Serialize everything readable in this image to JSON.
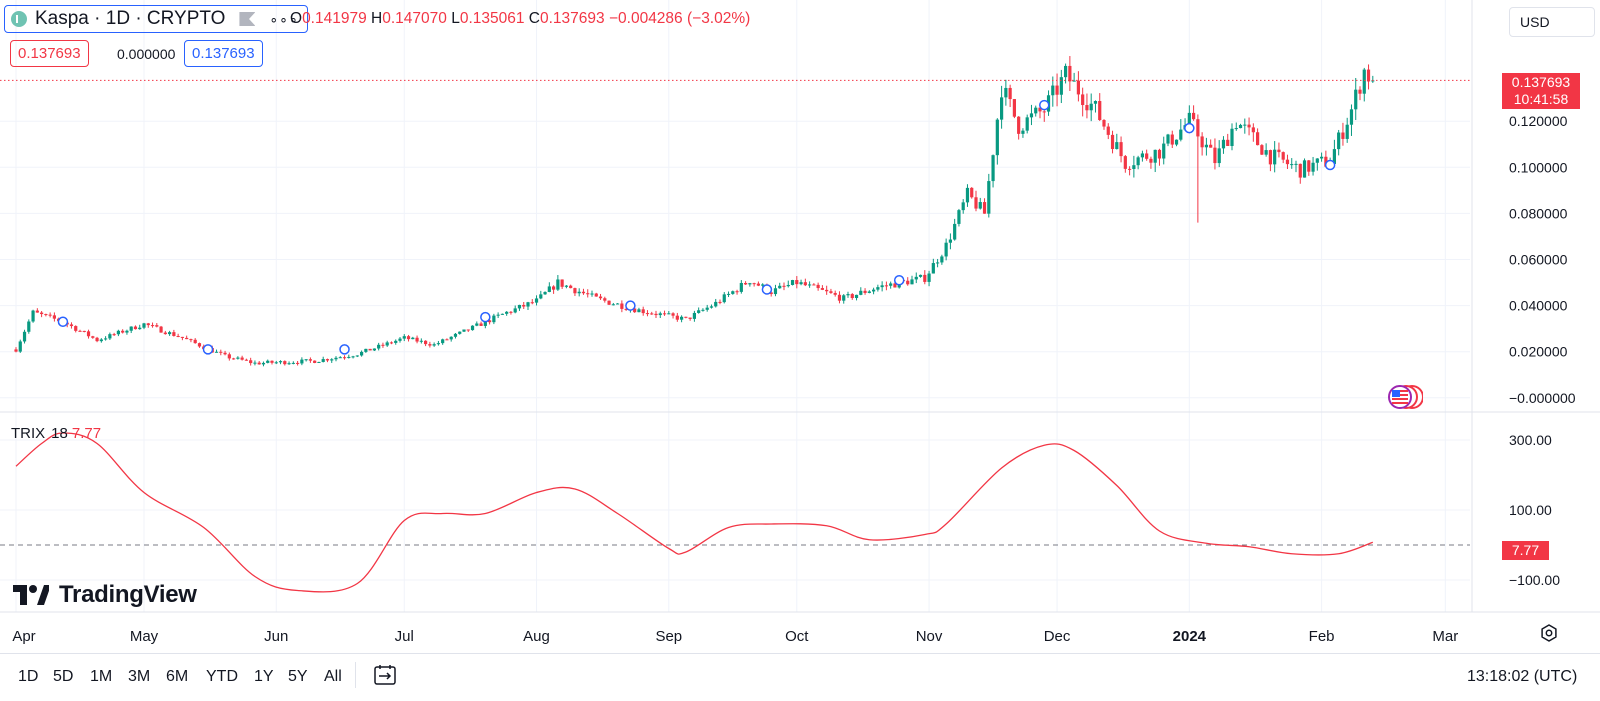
{
  "header": {
    "symbol_title": "Kaspa · 1D · CRYPTO",
    "more_icon": "dots-icon",
    "ohlc": {
      "o_label": "O",
      "o": "0.141979",
      "h_label": "H",
      "h": "0.147070",
      "l_label": "L",
      "l": "0.135061",
      "c_label": "C",
      "c": "0.137693",
      "change": "−0.004286 (−3.02%)"
    },
    "bid": "0.137693",
    "spread": "0.000000",
    "ask": "0.137693",
    "currency": "USD"
  },
  "price_tag": {
    "price": "0.137693",
    "countdown": "10:41:58"
  },
  "trix": {
    "name": "TRIX",
    "length": "18",
    "value": "7.77",
    "tag": "7.77"
  },
  "brand": {
    "name": "TradingView"
  },
  "timeframes": [
    "1D",
    "5D",
    "1M",
    "3M",
    "6M",
    "YTD",
    "1Y",
    "5Y",
    "All"
  ],
  "footer": {
    "time": "13:18:02 (UTC)"
  },
  "colors": {
    "up": "#089981",
    "down": "#f23645",
    "trix": "#f23645",
    "accent": "#2962ff",
    "grid": "#f0f3fa"
  },
  "chart_data": [
    {
      "type": "candlestick",
      "title": "Kaspa · 1D · CRYPTO",
      "y_ticks": [
        "0.120000",
        "0.100000",
        "0.080000",
        "0.060000",
        "0.040000",
        "0.020000",
        "−0.000000"
      ],
      "y_tick_values": [
        0.12,
        0.1,
        0.08,
        0.06,
        0.04,
        0.02,
        0.0
      ],
      "x_ticks": [
        "Apr",
        "May",
        "Jun",
        "Jul",
        "Aug",
        "Sep",
        "Oct",
        "Nov",
        "Dec",
        "2024",
        "Feb",
        "Mar"
      ],
      "x_tick_dates": [
        "2023-04-01",
        "2023-05-01",
        "2023-06-01",
        "2023-07-01",
        "2023-08-01",
        "2023-09-01",
        "2023-10-01",
        "2023-11-01",
        "2023-12-01",
        "2024-01-01",
        "2024-02-01",
        "2024-03-01"
      ],
      "date_range": [
        "2023-04-01",
        "2024-02-13"
      ],
      "close_anchors": [
        {
          "date": "2023-04-01",
          "close": 0.021
        },
        {
          "date": "2023-04-05",
          "close": 0.037
        },
        {
          "date": "2023-04-12",
          "close": 0.033
        },
        {
          "date": "2023-04-20",
          "close": 0.025
        },
        {
          "date": "2023-05-01",
          "close": 0.032
        },
        {
          "date": "2023-05-10",
          "close": 0.026
        },
        {
          "date": "2023-05-20",
          "close": 0.018
        },
        {
          "date": "2023-05-27",
          "close": 0.015
        },
        {
          "date": "2023-06-10",
          "close": 0.016
        },
        {
          "date": "2023-06-20",
          "close": 0.019
        },
        {
          "date": "2023-07-01",
          "close": 0.026
        },
        {
          "date": "2023-07-08",
          "close": 0.023
        },
        {
          "date": "2023-07-25",
          "close": 0.037
        },
        {
          "date": "2023-08-01",
          "close": 0.042
        },
        {
          "date": "2023-08-06",
          "close": 0.05
        },
        {
          "date": "2023-08-15",
          "close": 0.043
        },
        {
          "date": "2023-08-25",
          "close": 0.038
        },
        {
          "date": "2023-09-05",
          "close": 0.034
        },
        {
          "date": "2023-09-12",
          "close": 0.041
        },
        {
          "date": "2023-09-20",
          "close": 0.051
        },
        {
          "date": "2023-09-25",
          "close": 0.046
        },
        {
          "date": "2023-10-01",
          "close": 0.05
        },
        {
          "date": "2023-10-12",
          "close": 0.043
        },
        {
          "date": "2023-10-20",
          "close": 0.048
        },
        {
          "date": "2023-10-31",
          "close": 0.052
        },
        {
          "date": "2023-11-05",
          "close": 0.066
        },
        {
          "date": "2023-11-10",
          "close": 0.088
        },
        {
          "date": "2023-11-14",
          "close": 0.08
        },
        {
          "date": "2023-11-18",
          "close": 0.135
        },
        {
          "date": "2023-11-22",
          "close": 0.118
        },
        {
          "date": "2023-11-28",
          "close": 0.125
        },
        {
          "date": "2023-12-03",
          "close": 0.14
        },
        {
          "date": "2023-12-10",
          "close": 0.125
        },
        {
          "date": "2023-12-17",
          "close": 0.102
        },
        {
          "date": "2023-12-25",
          "close": 0.107
        },
        {
          "date": "2024-01-01",
          "close": 0.12
        },
        {
          "date": "2024-01-07",
          "close": 0.103
        },
        {
          "date": "2024-01-12",
          "close": 0.12
        },
        {
          "date": "2024-01-20",
          "close": 0.105
        },
        {
          "date": "2024-01-27",
          "close": 0.099
        },
        {
          "date": "2024-02-03",
          "close": 0.103
        },
        {
          "date": "2024-02-08",
          "close": 0.125
        },
        {
          "date": "2024-02-11",
          "close": 0.142
        },
        {
          "date": "2024-02-13",
          "close": 0.137693
        }
      ],
      "events": [
        {
          "date": "2023-04-12",
          "price": 0.033
        },
        {
          "date": "2023-05-16",
          "price": 0.021
        },
        {
          "date": "2023-06-17",
          "price": 0.021
        },
        {
          "date": "2023-07-20",
          "price": 0.035
        },
        {
          "date": "2023-08-23",
          "price": 0.04
        },
        {
          "date": "2023-09-24",
          "price": 0.047
        },
        {
          "date": "2023-10-25",
          "price": 0.051
        },
        {
          "date": "2023-11-28",
          "price": 0.127
        },
        {
          "date": "2024-01-01",
          "price": 0.117
        },
        {
          "date": "2024-02-03",
          "price": 0.101
        }
      ],
      "wick_low_outlier": {
        "date": "2024-01-03",
        "low": 0.076
      },
      "last_price": 0.137693,
      "last_price_line": "dotted"
    },
    {
      "type": "line",
      "title": "TRIX 18",
      "y_ticks": [
        "300.00",
        "100.00",
        "−100.00"
      ],
      "y_tick_values": [
        300,
        100,
        -100
      ],
      "zero_line": "dashed",
      "points": [
        {
          "date": "2023-04-01",
          "value": 225
        },
        {
          "date": "2023-04-07",
          "value": 290
        },
        {
          "date": "2023-04-12",
          "value": 320
        },
        {
          "date": "2023-04-20",
          "value": 290
        },
        {
          "date": "2023-05-01",
          "value": 150
        },
        {
          "date": "2023-05-15",
          "value": 50
        },
        {
          "date": "2023-05-27",
          "value": -90
        },
        {
          "date": "2023-06-06",
          "value": -130
        },
        {
          "date": "2023-06-20",
          "value": -110
        },
        {
          "date": "2023-07-01",
          "value": 70
        },
        {
          "date": "2023-07-10",
          "value": 90
        },
        {
          "date": "2023-07-20",
          "value": 90
        },
        {
          "date": "2023-08-01",
          "value": 150
        },
        {
          "date": "2023-08-10",
          "value": 160
        },
        {
          "date": "2023-08-20",
          "value": 90
        },
        {
          "date": "2023-09-01",
          "value": -10
        },
        {
          "date": "2023-09-05",
          "value": -20
        },
        {
          "date": "2023-09-15",
          "value": 50
        },
        {
          "date": "2023-09-25",
          "value": 60
        },
        {
          "date": "2023-10-08",
          "value": 55
        },
        {
          "date": "2023-10-18",
          "value": 15
        },
        {
          "date": "2023-10-31",
          "value": 30
        },
        {
          "date": "2023-11-05",
          "value": 60
        },
        {
          "date": "2023-11-18",
          "value": 220
        },
        {
          "date": "2023-11-28",
          "value": 285
        },
        {
          "date": "2023-12-05",
          "value": 270
        },
        {
          "date": "2023-12-15",
          "value": 170
        },
        {
          "date": "2023-12-25",
          "value": 40
        },
        {
          "date": "2024-01-05",
          "value": 5
        },
        {
          "date": "2024-01-15",
          "value": -5
        },
        {
          "date": "2024-01-25",
          "value": -25
        },
        {
          "date": "2024-02-05",
          "value": -25
        },
        {
          "date": "2024-02-13",
          "value": 7.77
        }
      ]
    }
  ]
}
